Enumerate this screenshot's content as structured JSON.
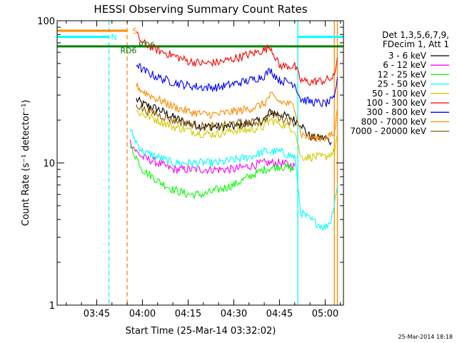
{
  "chart_data": {
    "type": "line",
    "title": "HESSI Observing Summary Count Rates",
    "xlabel": "Start Time (25-Mar-14 03:32:02)",
    "ylabel": "Count Rate (s⁻¹ detector⁻¹)",
    "yscale": "log",
    "ylim": [
      1,
      100
    ],
    "xlim": [
      "03:32",
      "05:06"
    ],
    "x_ticks": [
      "03:45",
      "04:00",
      "04:15",
      "04:30",
      "04:45",
      "05:00"
    ],
    "y_ticks": [
      "1",
      "10",
      "100"
    ],
    "grid": false,
    "legend_position": "right",
    "legend_header": [
      "Det 1,3,5,6,7,9,",
      "FDecim 1, Att 1"
    ],
    "timestamp": "25-Mar-2014 18:18",
    "annotations": [
      {
        "label": "S",
        "color": "#ff8c00"
      },
      {
        "label": "N",
        "color": "#00ffff"
      },
      {
        "label": "RD6",
        "color": "#008000"
      },
      {
        "label": "RD6",
        "color": "#008000"
      }
    ],
    "vertical_markers": [
      {
        "x": "03:49",
        "color": "#00ffff",
        "style": "dashed"
      },
      {
        "x": "03:55",
        "color": "#ff8c00",
        "style": "dashed"
      },
      {
        "x": "04:51",
        "color": "#00ffff",
        "style": "solid"
      },
      {
        "x": "05:03",
        "color": "#ff8c00",
        "style": "solid"
      },
      {
        "x": "05:04",
        "color": "#ff8c00",
        "style": "solid"
      }
    ],
    "flag_bars": [
      {
        "name": "S",
        "color": "#ff8c00",
        "segments": [
          [
            "03:32",
            "03:55"
          ]
        ],
        "y": 85
      },
      {
        "name": "N",
        "color": "#00ffff",
        "segments": [
          [
            "03:32",
            "03:49"
          ],
          [
            "04:51",
            "05:06"
          ]
        ],
        "y": 77
      },
      {
        "name": "RD6",
        "color": "#008000",
        "segments": [
          [
            "03:32",
            "03:56"
          ],
          [
            "03:56",
            "04:43"
          ],
          [
            "04:43",
            "04:51"
          ],
          [
            "04:51",
            "05:06"
          ]
        ],
        "y": 66
      }
    ],
    "series": [
      {
        "name": "3 - 6 keV",
        "color": "#000000",
        "x": [
          "03:58",
          "04:00",
          "04:05",
          "04:10",
          "04:15",
          "04:20",
          "04:25",
          "04:30",
          "04:35",
          "04:40",
          "04:42",
          "04:45",
          "04:48",
          "04:50",
          "04:52",
          "04:54",
          "04:56",
          "05:00",
          "05:02"
        ],
        "y": [
          28,
          26,
          24,
          21,
          19,
          18,
          18,
          18,
          19,
          20,
          23,
          22,
          21,
          20,
          19,
          16,
          15,
          15,
          14
        ]
      },
      {
        "name": "6 - 12 keV",
        "color": "#ff00ff",
        "x": [
          "03:56",
          "03:58",
          "04:00",
          "04:05",
          "04:10",
          "04:15",
          "04:20",
          "04:25",
          "04:30",
          "04:35",
          "04:40",
          "04:45",
          "04:50"
        ],
        "y": [
          14,
          12,
          11,
          10,
          9,
          9,
          9,
          9,
          9,
          9.5,
          10,
          10,
          9.5
        ]
      },
      {
        "name": "12 - 25 keV",
        "color": "#00ff00",
        "x": [
          "03:56",
          "03:58",
          "04:00",
          "04:05",
          "04:10",
          "04:15",
          "04:20",
          "04:25",
          "04:30",
          "04:35",
          "04:40",
          "04:45",
          "04:50"
        ],
        "y": [
          13,
          11,
          9,
          7.5,
          6.5,
          6,
          6,
          6.5,
          7,
          8,
          9,
          9.5,
          9
        ]
      },
      {
        "name": "25 - 50 keV",
        "color": "#00ffff",
        "x": [
          "03:56",
          "03:58",
          "04:00",
          "04:05",
          "04:10",
          "04:15",
          "04:20",
          "04:25",
          "04:30",
          "04:35",
          "04:40",
          "04:45",
          "04:50",
          "04:52",
          "04:55",
          "05:00",
          "05:02",
          "05:04"
        ],
        "y": [
          17,
          14,
          12,
          11,
          10,
          10,
          10,
          10,
          10.5,
          11,
          12,
          12,
          11,
          4.5,
          4,
          3.5,
          4,
          7
        ]
      },
      {
        "name": "50 - 100 keV",
        "color": "#d4c800",
        "x": [
          "03:58",
          "04:00",
          "04:05",
          "04:10",
          "04:15",
          "04:20",
          "04:25",
          "04:30",
          "04:35",
          "04:40",
          "04:42",
          "04:45",
          "04:48",
          "04:50",
          "04:52",
          "04:55",
          "05:00",
          "05:03",
          "05:04"
        ],
        "y": [
          23,
          22,
          20,
          18,
          17,
          16,
          16,
          17,
          17,
          18,
          20,
          19,
          18,
          17,
          11,
          11,
          11,
          12,
          16
        ]
      },
      {
        "name": "100 - 300 keV",
        "color": "#ff0000",
        "x": [
          "03:58",
          "04:00",
          "04:05",
          "04:10",
          "04:15",
          "04:20",
          "04:25",
          "04:30",
          "04:35",
          "04:40",
          "04:42",
          "04:45",
          "04:48",
          "04:50",
          "04:52",
          "04:55",
          "05:00",
          "05:03",
          "05:04"
        ],
        "y": [
          80,
          70,
          62,
          57,
          52,
          50,
          51,
          54,
          58,
          62,
          66,
          48,
          48,
          48,
          38,
          37,
          38,
          40,
          55
        ]
      },
      {
        "name": "300 - 800 keV",
        "color": "#0000ff",
        "x": [
          "03:58",
          "04:00",
          "04:05",
          "04:10",
          "04:15",
          "04:20",
          "04:25",
          "04:30",
          "04:35",
          "04:40",
          "04:42",
          "04:45",
          "04:48",
          "04:50",
          "04:52",
          "04:55",
          "05:00",
          "05:03",
          "05:04"
        ],
        "y": [
          50,
          45,
          40,
          37,
          35,
          34,
          34,
          36,
          38,
          41,
          45,
          38,
          37,
          36,
          28,
          27,
          26,
          28,
          40
        ]
      },
      {
        "name": "800 - 7000 keV",
        "color": "#ff8c00",
        "x": [
          "03:58",
          "04:00",
          "04:05",
          "04:10",
          "04:15",
          "04:20",
          "04:25",
          "04:30",
          "04:35",
          "04:40",
          "04:42",
          "04:45",
          "04:48",
          "04:50",
          "04:52",
          "04:55",
          "05:00",
          "05:03",
          "05:04"
        ],
        "y": [
          35,
          32,
          28,
          25,
          23,
          22,
          22,
          23,
          24,
          26,
          30,
          27,
          26,
          25,
          16,
          15,
          15,
          16,
          24
        ]
      },
      {
        "name": "7000 - 20000 keV",
        "color": "#8b5a00",
        "x": [
          "03:58",
          "04:00",
          "04:05",
          "04:10",
          "04:15",
          "04:20",
          "04:25",
          "04:30",
          "04:35",
          "04:40",
          "04:42",
          "04:45",
          "04:48",
          "04:50"
        ],
        "y": [
          26,
          24,
          22,
          20,
          19,
          18,
          18,
          19,
          19,
          20,
          22,
          21,
          20,
          19
        ]
      }
    ]
  }
}
